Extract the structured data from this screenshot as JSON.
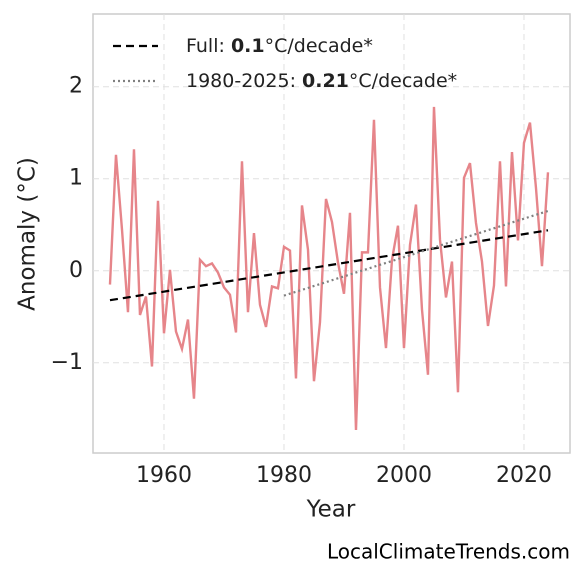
{
  "chart_data": {
    "type": "line",
    "xlabel": "Year",
    "ylabel": "Anomaly (°C)",
    "source": "LocalClimateTrends.com",
    "xlim": [
      1948.17,
      2027.67
    ],
    "ylim": [
      -1.98,
      2.79
    ],
    "xticks": [
      1960,
      1980,
      2000,
      2020
    ],
    "yticks": [
      {
        "value": -1,
        "label": "−1"
      },
      0,
      1,
      2
    ],
    "grid": true,
    "legend": "upper left",
    "x": [
      1951,
      1952,
      1953,
      1954,
      1955,
      1956,
      1957,
      1958,
      1959,
      1960,
      1961,
      1962,
      1963,
      1964,
      1965,
      1966,
      1967,
      1968,
      1969,
      1970,
      1971,
      1972,
      1973,
      1974,
      1975,
      1976,
      1977,
      1978,
      1979,
      1980,
      1981,
      1982,
      1983,
      1984,
      1985,
      1986,
      1987,
      1988,
      1989,
      1990,
      1991,
      1992,
      1993,
      1994,
      1995,
      1996,
      1997,
      1998,
      1999,
      2000,
      2001,
      2002,
      2003,
      2004,
      2005,
      2006,
      2007,
      2008,
      2009,
      2010,
      2011,
      2012,
      2013,
      2014,
      2015,
      2016,
      2017,
      2018,
      2019,
      2020,
      2021,
      2022,
      2023,
      2024
    ],
    "series": [
      {
        "color": "#e6858a",
        "values": [
          -0.15,
          1.26,
          0.45,
          -0.45,
          1.32,
          -0.48,
          -0.28,
          -1.04,
          0.76,
          -0.68,
          0.01,
          -0.66,
          -0.85,
          -0.53,
          -1.39,
          0.12,
          0.05,
          0.08,
          -0.02,
          -0.18,
          -0.26,
          -0.67,
          1.19,
          -0.45,
          0.41,
          -0.37,
          -0.61,
          -0.17,
          -0.19,
          0.26,
          0.22,
          -1.17,
          0.71,
          0.23,
          -1.2,
          -0.56,
          0.78,
          0.53,
          0.09,
          -0.25,
          0.63,
          -1.73,
          0.2,
          0.2,
          1.64,
          -0.18,
          -0.84,
          0.12,
          0.49,
          -0.84,
          0.28,
          0.72,
          -0.42,
          -1.13,
          1.78,
          0.34,
          -0.29,
          0.1,
          -1.32,
          1.01,
          1.17,
          0.52,
          0.1,
          -0.6,
          -0.16,
          1.19,
          -0.17,
          1.29,
          0.33,
          1.39,
          1.61,
          0.9,
          0.05,
          1.07
        ]
      },
      {
        "name": [
          "Full: ",
          "0.1",
          "°C/decade*"
        ],
        "color": "#000000",
        "dash": "dashed",
        "x": [
          1951,
          2024
        ],
        "values": [
          -0.32,
          0.44
        ]
      },
      {
        "name": [
          "1980-2025: ",
          "0.21",
          "°C/decade*"
        ],
        "color": "#808080",
        "dash": "dotted",
        "x": [
          1980,
          2024
        ],
        "values": [
          -0.27,
          0.65
        ]
      }
    ]
  }
}
